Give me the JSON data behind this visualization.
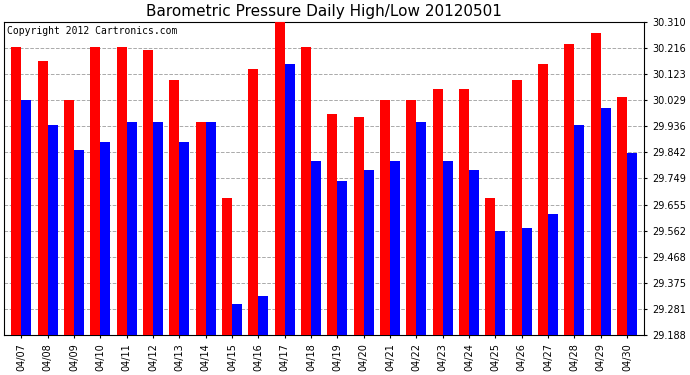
{
  "title": "Barometric Pressure Daily High/Low 20120501",
  "copyright": "Copyright 2012 Cartronics.com",
  "dates": [
    "04/07",
    "04/08",
    "04/09",
    "04/10",
    "04/11",
    "04/12",
    "04/13",
    "04/14",
    "04/15",
    "04/16",
    "04/17",
    "04/18",
    "04/19",
    "04/20",
    "04/21",
    "04/22",
    "04/23",
    "04/24",
    "04/25",
    "04/26",
    "04/27",
    "04/28",
    "04/29",
    "04/30"
  ],
  "highs": [
    30.22,
    30.17,
    30.03,
    30.22,
    30.22,
    30.21,
    30.1,
    29.95,
    29.68,
    30.14,
    30.33,
    30.22,
    29.98,
    29.97,
    30.03,
    30.03,
    30.07,
    30.07,
    29.68,
    30.1,
    30.16,
    30.23,
    30.27,
    30.04
  ],
  "lows": [
    30.03,
    29.94,
    29.85,
    29.88,
    29.95,
    29.95,
    29.88,
    29.95,
    29.3,
    29.33,
    30.16,
    29.81,
    29.74,
    29.78,
    29.81,
    29.95,
    29.81,
    29.78,
    29.56,
    29.57,
    29.62,
    29.94,
    30.0,
    29.84
  ],
  "high_color": "#ff0000",
  "low_color": "#0000ff",
  "bg_color": "#ffffff",
  "plot_bg_color": "#ffffff",
  "grid_color": "#aaaaaa",
  "ymin": 29.188,
  "ymax": 30.31,
  "yticks": [
    29.188,
    29.281,
    29.375,
    29.468,
    29.562,
    29.655,
    29.749,
    29.842,
    29.936,
    30.029,
    30.123,
    30.216,
    30.31
  ],
  "title_fontsize": 11,
  "copyright_fontsize": 7,
  "tick_fontsize": 7,
  "bar_width": 0.38
}
